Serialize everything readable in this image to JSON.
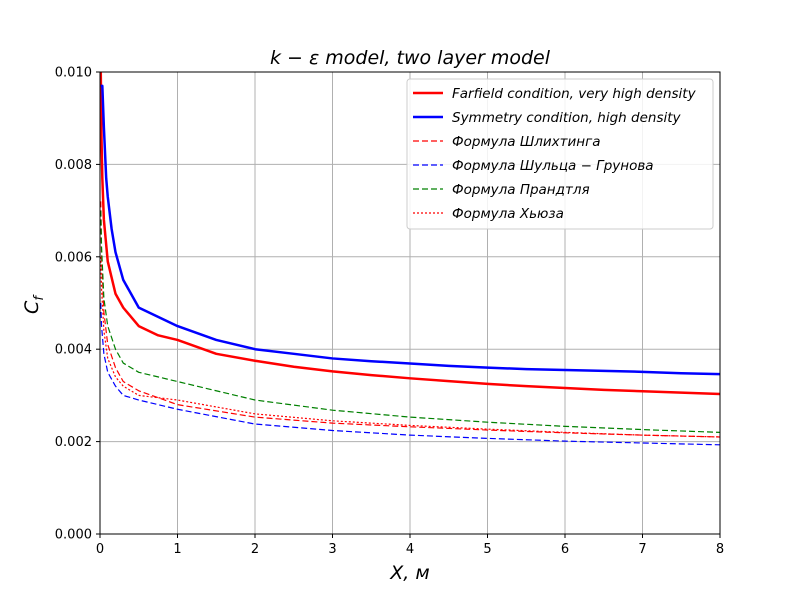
{
  "chart_data": {
    "type": "line",
    "title": "k − ε model,  two layer model",
    "xlabel": "X,  м",
    "ylabel": "C_f",
    "xlim": [
      0,
      8
    ],
    "ylim": [
      0,
      0.01
    ],
    "xticks": [
      0,
      1,
      2,
      3,
      4,
      5,
      6,
      7,
      8
    ],
    "xtick_labels": [
      "0",
      "1",
      "2",
      "3",
      "4",
      "5",
      "6",
      "7",
      "8"
    ],
    "yticks": [
      0,
      0.002,
      0.004,
      0.006,
      0.008,
      0.01
    ],
    "ytick_labels": [
      "0.000",
      "0.002",
      "0.004",
      "0.006",
      "0.008",
      "0.010"
    ],
    "grid": true,
    "legend_position": "top-right",
    "series": [
      {
        "name": "Farfield condition,  very high density",
        "color": "#ff0000",
        "style": "solid",
        "x": [
          0.01,
          0.02,
          0.03,
          0.05,
          0.1,
          0.2,
          0.3,
          0.5,
          0.75,
          1,
          1.5,
          2,
          2.5,
          3,
          3.5,
          4,
          4.5,
          5,
          5.5,
          6,
          6.5,
          7,
          7.5,
          8
        ],
        "y": [
          0.01,
          0.0085,
          0.0077,
          0.0068,
          0.0059,
          0.0052,
          0.0049,
          0.0045,
          0.0043,
          0.0042,
          0.0039,
          0.00375,
          0.00362,
          0.00352,
          0.00344,
          0.00337,
          0.00331,
          0.00325,
          0.0032,
          0.00316,
          0.00312,
          0.00309,
          0.00306,
          0.00303
        ]
      },
      {
        "name": "Symmetry condition,  high density",
        "color": "#0000ff",
        "style": "solid",
        "x": [
          0.01,
          0.03,
          0.05,
          0.08,
          0.1,
          0.15,
          0.2,
          0.3,
          0.5,
          0.75,
          1,
          1.5,
          2,
          2.5,
          3,
          3.5,
          4,
          4.5,
          5,
          5.5,
          6,
          6.5,
          7,
          7.5,
          8
        ],
        "y": [
          0.0097,
          0.0097,
          0.0088,
          0.0077,
          0.0073,
          0.0066,
          0.0061,
          0.0055,
          0.0049,
          0.0047,
          0.0045,
          0.0042,
          0.004,
          0.0039,
          0.0038,
          0.00374,
          0.00369,
          0.00364,
          0.0036,
          0.00357,
          0.00355,
          0.00353,
          0.00351,
          0.00348,
          0.00346
        ]
      },
      {
        "name": "Формула Шлихтинга",
        "color": "#ff0000",
        "style": "dashed",
        "x": [
          0.01,
          0.02,
          0.05,
          0.1,
          0.2,
          0.3,
          0.5,
          1,
          2,
          3,
          4,
          5,
          6,
          7,
          8
        ],
        "y": [
          0.0072,
          0.006,
          0.0048,
          0.0041,
          0.0036,
          0.0033,
          0.0031,
          0.0028,
          0.00253,
          0.0024,
          0.00232,
          0.00225,
          0.00219,
          0.00214,
          0.0021
        ]
      },
      {
        "name": "Формула Шульца − Грунова",
        "color": "#0000ff",
        "style": "dashed",
        "x": [
          0.01,
          0.02,
          0.05,
          0.1,
          0.2,
          0.3,
          0.5,
          1,
          2,
          3,
          4,
          5,
          6,
          7,
          8
        ],
        "y": [
          0.005,
          0.0045,
          0.0039,
          0.0035,
          0.0032,
          0.003,
          0.0029,
          0.0027,
          0.00238,
          0.00224,
          0.00214,
          0.00207,
          0.00201,
          0.00197,
          0.00193
        ]
      },
      {
        "name": "Формула Прандтля",
        "color": "#008000",
        "style": "dashed",
        "x": [
          0.01,
          0.02,
          0.05,
          0.1,
          0.2,
          0.3,
          0.5,
          1,
          2,
          3,
          4,
          5,
          6,
          7,
          8
        ],
        "y": [
          0.007,
          0.0062,
          0.0051,
          0.0045,
          0.004,
          0.0037,
          0.0035,
          0.0033,
          0.0029,
          0.00268,
          0.00253,
          0.00242,
          0.00233,
          0.00226,
          0.0022
        ]
      },
      {
        "name": "Формула Хьюза",
        "color": "#ff0000",
        "style": "dotted",
        "x": [
          0.01,
          0.02,
          0.05,
          0.1,
          0.2,
          0.3,
          0.5,
          1,
          2,
          3,
          4,
          5,
          6,
          7,
          8
        ],
        "y": [
          0.006,
          0.0053,
          0.0044,
          0.0038,
          0.0034,
          0.0032,
          0.003,
          0.0029,
          0.0026,
          0.00245,
          0.00235,
          0.00227,
          0.0022,
          0.00214,
          0.0021
        ]
      }
    ]
  }
}
